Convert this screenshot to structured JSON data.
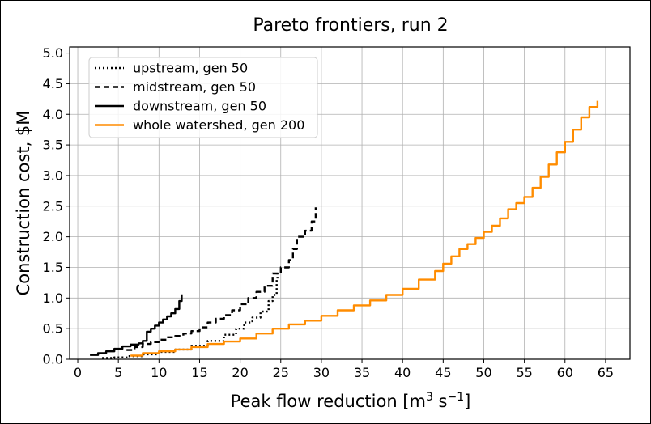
{
  "chart_data": {
    "type": "line",
    "title": "Pareto frontiers, run 2",
    "xlabel": "Peak flow reduction [m³ s⁻¹]",
    "xlabel_parts": {
      "main": "Peak flow reduction [m",
      "sup1": "3",
      "mid": " s",
      "sup2": "−1",
      "end": "]"
    },
    "ylabel": "Construction cost, $M",
    "xlim": [
      -1,
      68
    ],
    "ylim": [
      0,
      5.1
    ],
    "xticks": [
      0,
      5,
      10,
      15,
      20,
      25,
      30,
      35,
      40,
      45,
      50,
      55,
      60,
      65
    ],
    "yticks": [
      0.0,
      0.5,
      1.0,
      1.5,
      2.0,
      2.5,
      3.0,
      3.5,
      4.0,
      4.5,
      5.0
    ],
    "ytick_labels": [
      "0.0",
      "0.5",
      "1.0",
      "1.5",
      "2.0",
      "2.5",
      "3.0",
      "3.5",
      "4.0",
      "4.5",
      "5.0"
    ],
    "grid": true,
    "legend_position": "upper-left",
    "series": [
      {
        "name": "upstream, gen 50",
        "color": "#000000",
        "style": "dotted",
        "x": [
          3.0,
          4.5,
          6.0,
          8.0,
          10.0,
          12.0,
          14.0,
          16.0,
          18.0,
          19.5,
          20.5,
          21.5,
          22.5,
          23.5,
          24.0,
          24.5,
          24.6
        ],
        "y": [
          0.02,
          0.03,
          0.05,
          0.08,
          0.12,
          0.16,
          0.22,
          0.3,
          0.4,
          0.5,
          0.6,
          0.68,
          0.78,
          0.95,
          1.05,
          1.3,
          1.45
        ]
      },
      {
        "name": "midstream, gen 50",
        "color": "#000000",
        "style": "dashed",
        "x": [
          6.0,
          7.0,
          8.0,
          9.0,
          10.0,
          11.0,
          12.0,
          13.0,
          14.0,
          15.0,
          16.0,
          17.0,
          18.0,
          19.0,
          20.0,
          21.0,
          22.0,
          23.0,
          24.0,
          25.0,
          26.0,
          26.5,
          27.0,
          28.0,
          28.8,
          29.3
        ],
        "y": [
          0.15,
          0.2,
          0.25,
          0.28,
          0.32,
          0.36,
          0.38,
          0.42,
          0.46,
          0.52,
          0.6,
          0.66,
          0.72,
          0.8,
          0.9,
          1.0,
          1.1,
          1.2,
          1.4,
          1.5,
          1.62,
          1.8,
          2.0,
          2.1,
          2.25,
          2.48
        ]
      },
      {
        "name": "downstream, gen 50",
        "color": "#000000",
        "style": "solid",
        "x": [
          1.5,
          2.5,
          3.5,
          4.5,
          5.5,
          6.5,
          7.5,
          8.0,
          8.5,
          9.0,
          9.5,
          10.0,
          10.5,
          11.0,
          11.5,
          12.0,
          12.5,
          12.8
        ],
        "y": [
          0.07,
          0.1,
          0.13,
          0.17,
          0.21,
          0.24,
          0.26,
          0.3,
          0.45,
          0.5,
          0.55,
          0.6,
          0.65,
          0.7,
          0.75,
          0.82,
          0.95,
          1.06
        ]
      },
      {
        "name": "whole watershed, gen 200",
        "color": "#ff8c00",
        "style": "solid",
        "x": [
          6.5,
          8.0,
          10.0,
          12.0,
          14.0,
          16.0,
          18.0,
          20.0,
          22.0,
          24.0,
          26.0,
          28.0,
          30.0,
          32.0,
          34.0,
          36.0,
          38.0,
          40.0,
          42.0,
          44.0,
          45.0,
          46.0,
          47.0,
          48.0,
          49.0,
          50.0,
          51.0,
          52.0,
          53.0,
          54.0,
          55.0,
          56.0,
          57.0,
          58.0,
          59.0,
          60.0,
          61.0,
          62.0,
          63.0,
          64.0
        ],
        "y": [
          0.06,
          0.1,
          0.13,
          0.16,
          0.2,
          0.25,
          0.29,
          0.34,
          0.42,
          0.5,
          0.57,
          0.63,
          0.71,
          0.8,
          0.88,
          0.96,
          1.05,
          1.15,
          1.3,
          1.44,
          1.56,
          1.68,
          1.8,
          1.88,
          1.98,
          2.08,
          2.18,
          2.3,
          2.45,
          2.55,
          2.65,
          2.8,
          2.98,
          3.18,
          3.38,
          3.55,
          3.75,
          3.95,
          4.12,
          4.22
        ]
      }
    ]
  }
}
